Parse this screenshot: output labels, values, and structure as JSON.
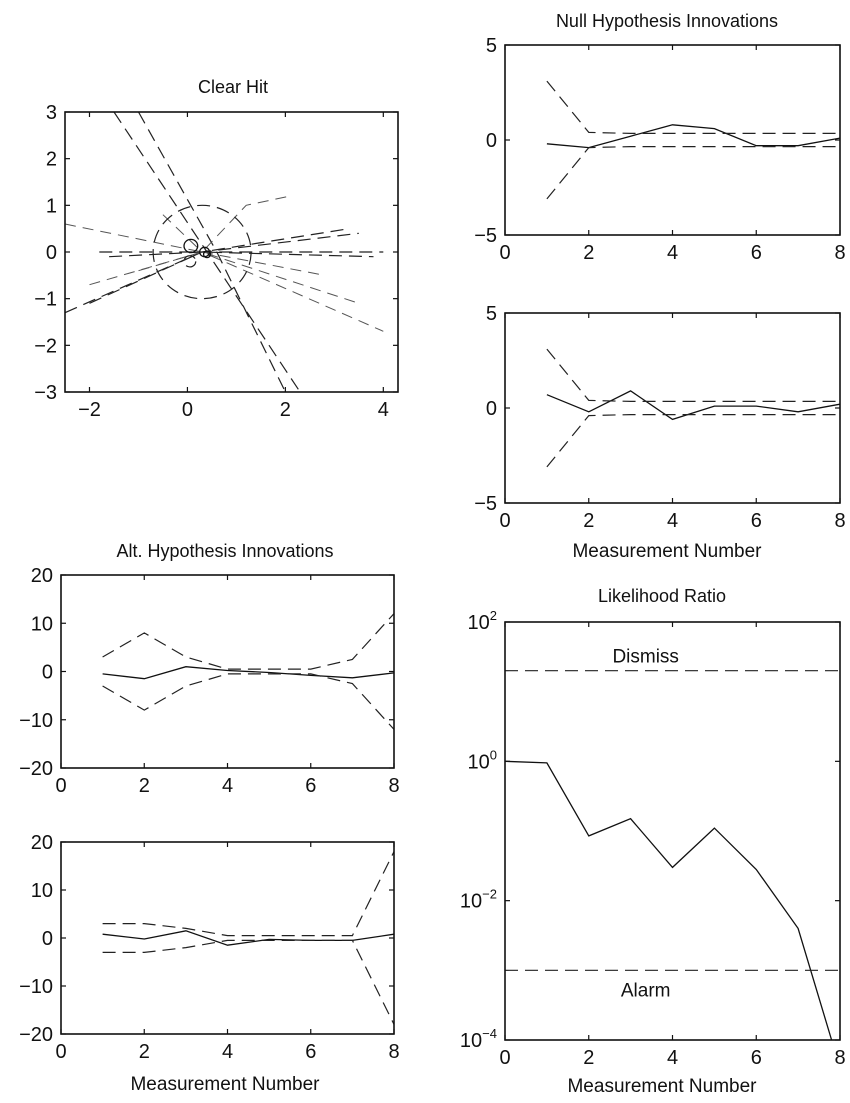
{
  "chart_data": [
    {
      "id": "clear-hit",
      "type": "line",
      "title": "Clear Hit",
      "xlabel": "",
      "ylabel": "",
      "xlim": [
        -2.5,
        4.3
      ],
      "ylim": [
        -3,
        3
      ],
      "xticks": [
        -2,
        0,
        2,
        4
      ],
      "yticks": [
        3,
        2,
        1,
        0,
        -1,
        -2,
        -3
      ],
      "xtick_labels": [
        "-2",
        "0",
        "2",
        "4"
      ],
      "ytick_labels": [
        "3",
        "2",
        "1",
        "0",
        "-1",
        "-2",
        "-3"
      ],
      "grid": false,
      "series": [
        {
          "style": "dashed",
          "x": [
            -1.5,
            0.4,
            2.3
          ],
          "y": [
            3.0,
            0.0,
            -3.0
          ]
        },
        {
          "style": "dashed",
          "x": [
            -1.0,
            0.6,
            2.0
          ],
          "y": [
            3.0,
            0.0,
            -3.0
          ]
        },
        {
          "style": "dashed",
          "x": [
            -2.5,
            0.3,
            3.3
          ],
          "y": [
            -1.3,
            0.0,
            0.5
          ]
        },
        {
          "style": "dashed",
          "x": [
            -2.0,
            0.3,
            3.5
          ],
          "y": [
            -1.1,
            0.0,
            0.4
          ]
        },
        {
          "style": "dashed",
          "x": [
            -1.8,
            0.3,
            4.0
          ],
          "y": [
            0.0,
            0.0,
            0.0
          ]
        },
        {
          "style": "dashed",
          "x": [
            -1.6,
            0.3,
            3.8
          ],
          "y": [
            -0.1,
            0.0,
            -0.1
          ]
        },
        {
          "style": "dashdot",
          "x": [
            -2.5,
            0.3,
            1.2,
            2.1
          ],
          "y": [
            0.6,
            0.0,
            1.0,
            1.2
          ]
        },
        {
          "style": "dashdot",
          "x": [
            -2.0,
            0.3,
            4.0
          ],
          "y": [
            -0.7,
            0.0,
            -1.7
          ]
        },
        {
          "style": "dashdot",
          "x": [
            -1.0,
            0.3,
            3.5
          ],
          "y": [
            -0.4,
            0.0,
            -1.1
          ]
        },
        {
          "style": "dashdot",
          "x": [
            -0.5,
            0.3,
            2.8
          ],
          "y": [
            0.8,
            0.0,
            -0.5
          ]
        }
      ],
      "circles": [
        {
          "style": "dashed",
          "cx": 0.3,
          "cy": 0.0,
          "r": 1.0
        },
        {
          "style": "solid",
          "cx": 0.07,
          "cy": 0.13,
          "r": 0.14
        },
        {
          "style": "solid",
          "cx": 0.35,
          "cy": 0.0,
          "r": 0.1
        },
        {
          "style": "solid",
          "cx": 0.4,
          "cy": -0.05,
          "r": 0.07
        },
        {
          "style": "dashed",
          "cx": 0.05,
          "cy": -0.2,
          "r": 0.12
        }
      ]
    },
    {
      "id": "null-hypothesis-top",
      "type": "line",
      "title": "Null Hypothesis Innovations",
      "xlabel": "",
      "ylabel": "",
      "xlim": [
        0,
        8
      ],
      "ylim": [
        -5,
        5
      ],
      "xticks": [
        0,
        2,
        4,
        6,
        8
      ],
      "yticks": [
        5,
        0,
        -5
      ],
      "xtick_labels": [
        "0",
        "2",
        "4",
        "6",
        "8"
      ],
      "ytick_labels": [
        "5",
        "0",
        "-5"
      ],
      "grid": false,
      "x": [
        1,
        2,
        3,
        4,
        5,
        6,
        7,
        8
      ],
      "series": [
        {
          "style": "solid",
          "values": [
            -0.2,
            -0.4,
            0.2,
            0.8,
            0.6,
            -0.3,
            -0.3,
            0.1
          ]
        },
        {
          "style": "dashed",
          "values": [
            3.1,
            0.4,
            0.35,
            0.35,
            0.35,
            0.35,
            0.35,
            0.35
          ]
        },
        {
          "style": "dashed",
          "values": [
            -3.1,
            -0.4,
            -0.35,
            -0.35,
            -0.35,
            -0.35,
            -0.35,
            -0.35
          ]
        }
      ]
    },
    {
      "id": "null-hypothesis-bottom",
      "type": "line",
      "title": "",
      "xlabel": "Measurement Number",
      "ylabel": "",
      "xlim": [
        0,
        8
      ],
      "ylim": [
        -5,
        5
      ],
      "xticks": [
        0,
        2,
        4,
        6,
        8
      ],
      "yticks": [
        5,
        0,
        -5
      ],
      "xtick_labels": [
        "0",
        "2",
        "4",
        "6",
        "8"
      ],
      "ytick_labels": [
        "5",
        "0",
        "-5"
      ],
      "grid": false,
      "x": [
        1,
        2,
        3,
        4,
        5,
        6,
        7,
        8
      ],
      "series": [
        {
          "style": "solid",
          "values": [
            0.7,
            -0.2,
            0.9,
            -0.6,
            0.1,
            0.1,
            -0.2,
            0.2
          ]
        },
        {
          "style": "dashed",
          "values": [
            3.1,
            0.4,
            0.35,
            0.35,
            0.35,
            0.35,
            0.35,
            0.35
          ]
        },
        {
          "style": "dashed",
          "values": [
            -3.1,
            -0.4,
            -0.35,
            -0.35,
            -0.35,
            -0.35,
            -0.35,
            -0.35
          ]
        }
      ]
    },
    {
      "id": "alt-hypothesis-top",
      "type": "line",
      "title": "Alt. Hypothesis Innovations",
      "xlabel": "",
      "ylabel": "",
      "xlim": [
        0,
        8
      ],
      "ylim": [
        -20,
        20
      ],
      "xticks": [
        0,
        2,
        4,
        6,
        8
      ],
      "yticks": [
        20,
        10,
        0,
        -10,
        -20
      ],
      "xtick_labels": [
        "0",
        "2",
        "4",
        "6",
        "8"
      ],
      "ytick_labels": [
        "20",
        "10",
        "0",
        "-10",
        "-20"
      ],
      "grid": false,
      "x": [
        1,
        2,
        3,
        4,
        5,
        6,
        7,
        8
      ],
      "series": [
        {
          "style": "solid",
          "values": [
            -0.5,
            -1.5,
            1.0,
            0.2,
            -0.2,
            -0.8,
            -1.3,
            -0.3
          ]
        },
        {
          "style": "dashed",
          "values": [
            3.0,
            8.0,
            3.0,
            0.5,
            0.5,
            0.5,
            2.5,
            12.0
          ]
        },
        {
          "style": "dashed",
          "values": [
            -3.0,
            -8.0,
            -3.0,
            -0.5,
            -0.5,
            -0.5,
            -2.5,
            -12.0
          ]
        }
      ]
    },
    {
      "id": "alt-hypothesis-bottom",
      "type": "line",
      "title": "",
      "xlabel": "Measurement Number",
      "ylabel": "",
      "xlim": [
        0,
        8
      ],
      "ylim": [
        -20,
        20
      ],
      "xticks": [
        0,
        2,
        4,
        6,
        8
      ],
      "yticks": [
        20,
        10,
        0,
        -10,
        -20
      ],
      "xtick_labels": [
        "0",
        "2",
        "4",
        "6",
        "8"
      ],
      "ytick_labels": [
        "20",
        "10",
        "0",
        "-10",
        "-20"
      ],
      "grid": false,
      "x": [
        1,
        2,
        3,
        4,
        5,
        6,
        7,
        8
      ],
      "series": [
        {
          "style": "solid",
          "values": [
            0.8,
            -0.2,
            1.5,
            -1.5,
            -0.3,
            -0.5,
            -0.5,
            0.8
          ]
        },
        {
          "style": "dashed",
          "values": [
            3.0,
            3.0,
            2.0,
            0.5,
            0.5,
            0.5,
            0.5,
            18.0
          ]
        },
        {
          "style": "dashed",
          "values": [
            -3.0,
            -3.0,
            -2.0,
            -0.5,
            -0.5,
            -0.5,
            -0.5,
            -18.0
          ]
        }
      ]
    },
    {
      "id": "likelihood-ratio",
      "type": "line",
      "title": "Likelihood Ratio",
      "xlabel": "Measurement Number",
      "ylabel": "",
      "yscale": "log",
      "xlim": [
        0,
        8
      ],
      "ylim": [
        0.0001,
        100
      ],
      "xticks": [
        0,
        2,
        4,
        6,
        8
      ],
      "yticks": [
        100,
        1,
        0.01,
        0.0001
      ],
      "xtick_labels": [
        "0",
        "2",
        "4",
        "6",
        "8"
      ],
      "ytick_labels": [
        "10^2",
        "10^0",
        "10^-2",
        "10^-4"
      ],
      "grid": false,
      "x": [
        0,
        1,
        2,
        3,
        4,
        5,
        6,
        7,
        7.8
      ],
      "series": [
        {
          "style": "solid",
          "values": [
            1.0,
            0.95,
            0.085,
            0.15,
            0.03,
            0.11,
            0.028,
            0.004,
            0.0001
          ]
        }
      ],
      "hlines": [
        {
          "value": 20,
          "label": "Dismiss",
          "style": "dashed"
        },
        {
          "value": 0.001,
          "label": "Alarm",
          "style": "dashed"
        }
      ]
    }
  ]
}
